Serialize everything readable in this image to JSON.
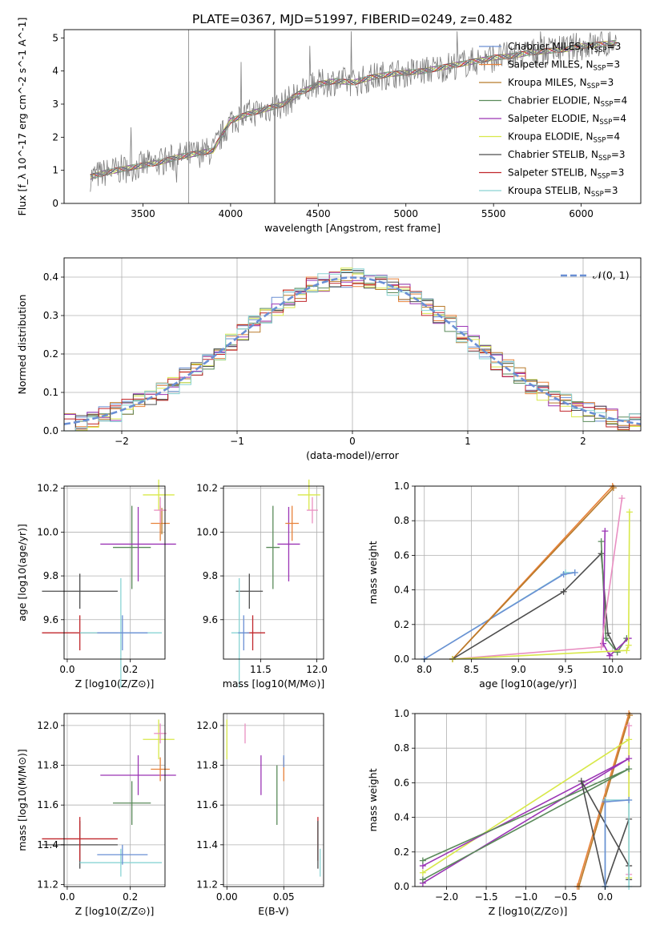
{
  "figure_title": "PLATE=0367, MJD=51997, FIBERID=0249, z=0.482",
  "legend_entries": [
    {
      "label": "Chabrier MILES, N",
      "sub": "SSP",
      "tail": "=3",
      "color": "#6a8fd4"
    },
    {
      "label": "Salpeter MILES, N",
      "sub": "SSP",
      "tail": "=3",
      "color": "#e8823a"
    },
    {
      "label": "Kroupa MILES, N",
      "sub": "SSP",
      "tail": "=3",
      "color": "#b87a2a"
    },
    {
      "label": "Chabrier ELODIE, N",
      "sub": "SSP",
      "tail": "=4",
      "color": "#5a8a5a"
    },
    {
      "label": "Salpeter ELODIE, N",
      "sub": "SSP",
      "tail": "=4",
      "color": "#9b35b5"
    },
    {
      "label": "Kroupa ELODIE, N",
      "sub": "SSP",
      "tail": "=4",
      "color": "#d8e84a"
    },
    {
      "label": "Chabrier STELIB, N",
      "sub": "SSP",
      "tail": "=3",
      "color": "#4d4d4d"
    },
    {
      "label": "Salpeter STELIB, N",
      "sub": "SSP",
      "tail": "=3",
      "color": "#c0262b"
    },
    {
      "label": "Kroupa STELIB, N",
      "sub": "SSP",
      "tail": "=3",
      "color": "#8ad4d4"
    }
  ],
  "chart_data": [
    {
      "id": "spectrum",
      "type": "line",
      "title": "PLATE=0367, MJD=51997, FIBERID=0249, z=0.482",
      "xlabel": "wavelength [Angstrom, rest frame]",
      "ylabel": "Flux [f_λ 10^-17 erg cm^-2 s^-1 A^-1]",
      "xlim": [
        3050,
        6340
      ],
      "ylim": [
        0,
        5.25
      ],
      "xticks": [
        3500,
        4000,
        4500,
        5000,
        5500,
        6000
      ],
      "yticks": [
        0,
        1,
        2,
        3,
        4,
        5
      ],
      "continuum_x": [
        3200,
        3300,
        3400,
        3500,
        3600,
        3700,
        3800,
        3900,
        4000,
        4100,
        4200,
        4300,
        4400,
        4500,
        4600,
        4700,
        4800,
        4900,
        5000,
        5100,
        5200,
        5300,
        5400,
        5500,
        5600,
        5700,
        5800,
        5900,
        6000,
        6100,
        6200
      ],
      "continuum_y": [
        0.8,
        0.95,
        1.05,
        1.15,
        1.25,
        1.4,
        1.5,
        1.6,
        2.5,
        2.7,
        2.85,
        3.0,
        3.35,
        3.6,
        3.7,
        3.65,
        3.8,
        3.9,
        3.95,
        4.0,
        4.1,
        4.2,
        4.3,
        4.4,
        4.45,
        4.55,
        4.6,
        4.65,
        4.75,
        4.8,
        4.85
      ],
      "grid": false,
      "legend": "upper right"
    },
    {
      "id": "residuals",
      "type": "line",
      "xlabel": "(data-model)/error",
      "ylabel": "Normed distribution",
      "xlim": [
        -2.5,
        2.5
      ],
      "ylim": [
        0,
        0.45
      ],
      "xticks": [
        -2,
        -1,
        0,
        1,
        2
      ],
      "yticks": [
        0.0,
        0.1,
        0.2,
        0.3,
        0.4
      ],
      "reference_label": "𝒩(0, 1)",
      "grid": true,
      "legend": "upper right"
    },
    {
      "id": "age-vs-Z",
      "type": "scatter",
      "xlabel": "Z [log10(Z/Z⊙)]",
      "ylabel": "age  [log10(age/yr)]",
      "xlim": [
        -0.01,
        0.31
      ],
      "ylim": [
        9.42,
        10.21
      ],
      "xticks": [
        0.0,
        0.2
      ],
      "yticks": [
        9.6,
        9.8,
        10.0,
        10.2
      ],
      "points": [
        {
          "color": "#4d4d4d",
          "x": 0.04,
          "y": 9.73,
          "xerr": 0.12,
          "yerr": 0.08
        },
        {
          "color": "#c0262b",
          "x": 0.04,
          "y": 9.54,
          "xerr": 0.12,
          "yerr": 0.08
        },
        {
          "color": "#8ad4d4",
          "x": 0.17,
          "y": 9.54,
          "xerr": 0.13,
          "yerr": 0.25
        },
        {
          "color": "#6a8fd4",
          "x": 0.175,
          "y": 9.54,
          "xerr": 0.08,
          "yerr": 0.08
        },
        {
          "color": "#5a8a5a",
          "x": 0.205,
          "y": 9.93,
          "xerr": 0.06,
          "yerr": 0.19
        },
        {
          "color": "#9b35b5",
          "x": 0.225,
          "y": 9.945,
          "xerr": 0.12,
          "yerr": 0.17
        },
        {
          "color": "#e8823a",
          "x": 0.295,
          "y": 10.04,
          "xerr": 0.03,
          "yerr": 0.08
        },
        {
          "color": "#b87a2a",
          "x": 0.3,
          "y": 10.05,
          "xerr": 0.0,
          "yerr": 0.06
        },
        {
          "color": "#d8e84a",
          "x": 0.29,
          "y": 10.17,
          "xerr": 0.05,
          "yerr": 0.07
        },
        {
          "color": "#e98fc2",
          "x": 0.295,
          "y": 10.1,
          "xerr": 0.02,
          "yerr": 0.06
        }
      ],
      "grid": true
    },
    {
      "id": "age-vs-mass",
      "type": "scatter",
      "xlabel": "mass [log10(M/M⊙)]",
      "ylabel": "",
      "xlim": [
        11.17,
        12.06
      ],
      "ylim": [
        9.42,
        10.21
      ],
      "xticks": [
        11.5,
        12.0
      ],
      "yticks": [
        9.6,
        9.8,
        10.0,
        10.2
      ],
      "points": [
        {
          "color": "#4d4d4d",
          "x": 11.4,
          "y": 9.73,
          "xerr": 0.12,
          "yerr": 0.08
        },
        {
          "color": "#c0262b",
          "x": 11.43,
          "y": 9.54,
          "xerr": 0.11,
          "yerr": 0.08
        },
        {
          "color": "#8ad4d4",
          "x": 11.31,
          "y": 9.54,
          "xerr": 0.07,
          "yerr": 0.25
        },
        {
          "color": "#6a8fd4",
          "x": 11.35,
          "y": 9.54,
          "xerr": 0.05,
          "yerr": 0.08
        },
        {
          "color": "#5a8a5a",
          "x": 11.61,
          "y": 9.93,
          "xerr": 0.06,
          "yerr": 0.19
        },
        {
          "color": "#9b35b5",
          "x": 11.75,
          "y": 9.945,
          "xerr": 0.1,
          "yerr": 0.17
        },
        {
          "color": "#e8823a",
          "x": 11.78,
          "y": 10.04,
          "xerr": 0.06,
          "yerr": 0.08
        },
        {
          "color": "#d8e84a",
          "x": 11.93,
          "y": 10.17,
          "xerr": 0.1,
          "yerr": 0.07
        },
        {
          "color": "#e98fc2",
          "x": 11.96,
          "y": 10.1,
          "xerr": 0.05,
          "yerr": 0.06
        }
      ],
      "grid": true
    },
    {
      "id": "massweight-vs-age",
      "type": "line",
      "xlabel": "age  [log10(age/yr)]",
      "ylabel": "mass weight",
      "xlim": [
        7.9,
        10.3
      ],
      "ylim": [
        0,
        1
      ],
      "xticks": [
        8.0,
        8.5,
        9.0,
        9.5,
        10.0
      ],
      "yticks": [
        0.0,
        0.2,
        0.4,
        0.6,
        0.8,
        1.0
      ],
      "series": [
        {
          "color": "#8ad4d4",
          "x": [
            8.0,
            9.5,
            9.6
          ],
          "y": [
            0.0,
            0.5,
            0.5
          ]
        },
        {
          "color": "#6a8fd4",
          "x": [
            8.0,
            9.48,
            9.6
          ],
          "y": [
            0.0,
            0.49,
            0.5
          ]
        },
        {
          "color": "#e8823a",
          "x": [
            8.3,
            10.0
          ],
          "y": [
            0.0,
            1.0
          ]
        },
        {
          "color": "#b87a2a",
          "x": [
            8.3,
            10.01
          ],
          "y": [
            0.0,
            0.99
          ]
        },
        {
          "color": "#4d4d4d",
          "x": [
            8.3,
            9.48,
            9.88,
            9.95,
            10.05
          ],
          "y": [
            0.0,
            0.39,
            0.61,
            0.15,
            0.04
          ]
        },
        {
          "color": "#5a8a5a",
          "x": [
            9.88,
            9.93,
            10.05,
            10.15
          ],
          "y": [
            0.68,
            0.12,
            0.04,
            0.12
          ]
        },
        {
          "color": "#9b35b5",
          "x": [
            9.92,
            9.9,
            9.97,
            10.17
          ],
          "y": [
            0.74,
            0.09,
            0.02,
            0.12
          ]
        },
        {
          "color": "#e98fc2",
          "x": [
            8.3,
            9.88,
            10.1
          ],
          "y": [
            0.0,
            0.07,
            0.93
          ]
        },
        {
          "color": "#d8e84a",
          "x": [
            8.3,
            10.15,
            10.17,
            10.18
          ],
          "y": [
            0.0,
            0.05,
            0.08,
            0.85
          ]
        }
      ],
      "grid": true
    },
    {
      "id": "mass-vs-Z",
      "type": "scatter",
      "xlabel": "Z [log10(Z/Z⊙)]",
      "ylabel": "mass [log10(M/M⊙)]",
      "xlim": [
        -0.01,
        0.31
      ],
      "ylim": [
        11.19,
        12.06
      ],
      "xticks": [
        0.0,
        0.2
      ],
      "yticks": [
        11.2,
        11.4,
        11.6,
        11.8,
        12.0
      ],
      "points": [
        {
          "color": "#4d4d4d",
          "x": 0.04,
          "y": 11.4,
          "xerr": 0.12,
          "yerr": 0.12
        },
        {
          "color": "#c0262b",
          "x": 0.04,
          "y": 11.43,
          "xerr": 0.12,
          "yerr": 0.11
        },
        {
          "color": "#8ad4d4",
          "x": 0.17,
          "y": 11.31,
          "xerr": 0.13,
          "yerr": 0.07
        },
        {
          "color": "#6a8fd4",
          "x": 0.175,
          "y": 11.35,
          "xerr": 0.08,
          "yerr": 0.05
        },
        {
          "color": "#5a8a5a",
          "x": 0.205,
          "y": 11.61,
          "xerr": 0.06,
          "yerr": 0.11
        },
        {
          "color": "#9b35b5",
          "x": 0.225,
          "y": 11.75,
          "xerr": 0.12,
          "yerr": 0.1
        },
        {
          "color": "#e8823a",
          "x": 0.295,
          "y": 11.78,
          "xerr": 0.03,
          "yerr": 0.06
        },
        {
          "color": "#d8e84a",
          "x": 0.29,
          "y": 11.93,
          "xerr": 0.05,
          "yerr": 0.1
        },
        {
          "color": "#e98fc2",
          "x": 0.295,
          "y": 11.96,
          "xerr": 0.02,
          "yerr": 0.05
        }
      ],
      "grid": true
    },
    {
      "id": "mass-vs-EBV",
      "type": "scatter",
      "xlabel": "E(B-V)",
      "ylabel": "",
      "xlim": [
        -0.003,
        0.085
      ],
      "ylim": [
        11.19,
        12.06
      ],
      "xticks": [
        0.0,
        0.05
      ],
      "yticks": [
        11.2,
        11.4,
        11.6,
        11.8,
        12.0
      ],
      "points": [
        {
          "color": "#d8e84a",
          "x": 0.0,
          "y": 11.93,
          "xerr": 0.0,
          "yerr": 0.1
        },
        {
          "color": "#e98fc2",
          "x": 0.016,
          "y": 11.96,
          "xerr": 0.0,
          "yerr": 0.05
        },
        {
          "color": "#9b35b5",
          "x": 0.03,
          "y": 11.75,
          "xerr": 0.0,
          "yerr": 0.1
        },
        {
          "color": "#5a8a5a",
          "x": 0.044,
          "y": 11.65,
          "xerr": 0.0,
          "yerr": 0.15
        },
        {
          "color": "#e8823a",
          "x": 0.05,
          "y": 11.78,
          "xerr": 0.0,
          "yerr": 0.06
        },
        {
          "color": "#6a8fd4",
          "x": 0.05,
          "y": 11.82,
          "xerr": 0.0,
          "yerr": 0.03
        },
        {
          "color": "#c0262b",
          "x": 0.08,
          "y": 11.43,
          "xerr": 0.0,
          "yerr": 0.11
        },
        {
          "color": "#4d4d4d",
          "x": 0.08,
          "y": 11.4,
          "xerr": 0.0,
          "yerr": 0.12
        },
        {
          "color": "#8ad4d4",
          "x": 0.082,
          "y": 11.31,
          "xerr": 0.0,
          "yerr": 0.07
        }
      ],
      "grid": true
    },
    {
      "id": "massweight-vs-Z",
      "type": "line",
      "xlabel": "Z [log10(Z/Z⊙)]",
      "ylabel": "mass weight",
      "xlim": [
        -2.4,
        0.45
      ],
      "ylim": [
        0,
        1
      ],
      "xticks": [
        -2.0,
        -1.5,
        -1.0,
        -0.5,
        0.0
      ],
      "yticks": [
        0.0,
        0.2,
        0.4,
        0.6,
        0.8,
        1.0
      ],
      "series": [
        {
          "color": "#e8823a",
          "x": [
            -0.35,
            0.3
          ],
          "y": [
            0.0,
            1.0
          ]
        },
        {
          "color": "#b87a2a",
          "x": [
            -0.33,
            0.31
          ],
          "y": [
            0.0,
            0.99
          ]
        },
        {
          "color": "#e98fc2",
          "x": [
            0.3,
            0.3
          ],
          "y": [
            0.07,
            0.93
          ]
        },
        {
          "color": "#d8e84a",
          "x": [
            -2.3,
            0.3,
            0.3
          ],
          "y": [
            0.08,
            0.85,
            0.05
          ]
        },
        {
          "color": "#9b35b5",
          "x": [
            -2.3,
            0.3,
            -2.3
          ],
          "y": [
            0.02,
            0.74,
            0.12
          ]
        },
        {
          "color": "#5a8a5a",
          "x": [
            -2.3,
            0.3,
            -2.3
          ],
          "y": [
            0.04,
            0.68,
            0.15
          ]
        },
        {
          "color": "#4d4d4d",
          "x": [
            0.3,
            0.0,
            -0.3,
            0.3,
            0.3
          ],
          "y": [
            0.39,
            0.0,
            0.61,
            0.12,
            0.04
          ]
        },
        {
          "color": "#8ad4d4",
          "x": [
            0.0,
            0.0,
            0.3,
            0.3
          ],
          "y": [
            0.0,
            0.5,
            0.5,
            0.0
          ]
        },
        {
          "color": "#6a8fd4",
          "x": [
            0.0,
            0.0,
            0.3
          ],
          "y": [
            0.0,
            0.49,
            0.5
          ]
        }
      ],
      "grid": true
    }
  ]
}
